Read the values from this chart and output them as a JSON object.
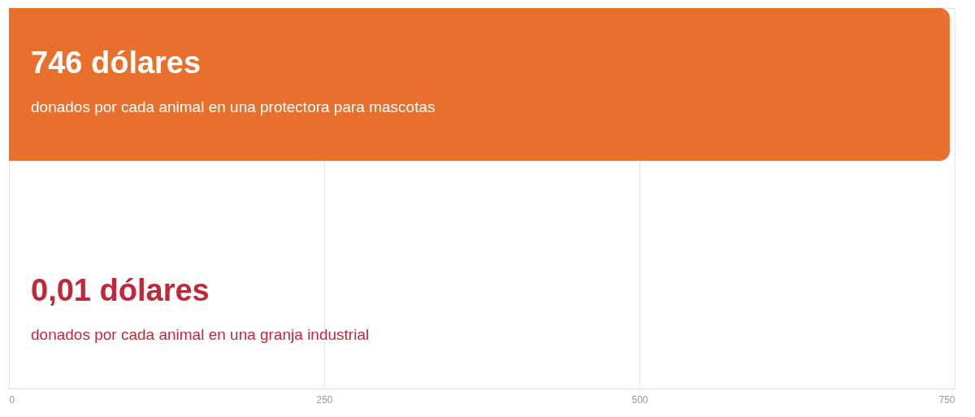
{
  "chart_data": {
    "type": "bar",
    "orientation": "horizontal",
    "categories": [
      "donados por cada animal en una protectora para mascotas",
      "donados por cada animal en una granja industrial"
    ],
    "values": [
      746,
      0.01
    ],
    "colors": [
      "#e8702c",
      "#c0283a"
    ],
    "value_labels": [
      "746 dólares",
      "0,01 dólares"
    ],
    "xlim": [
      0,
      750
    ],
    "xticks": [
      0,
      250,
      500,
      750
    ],
    "grid": "x"
  }
}
